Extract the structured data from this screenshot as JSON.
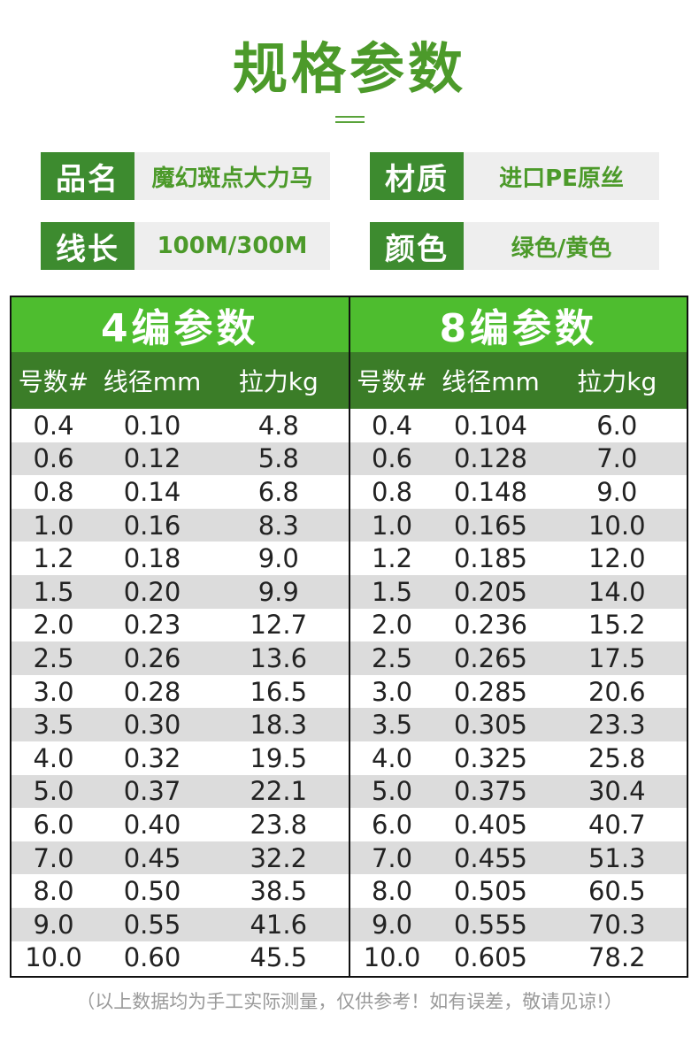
{
  "title": "规格参数",
  "specs": [
    {
      "key": "品名",
      "value": "魔幻斑点大力马"
    },
    {
      "key": "材质",
      "value": "进口PE原丝"
    },
    {
      "key": "线长",
      "value": "100M/300M"
    },
    {
      "key": "颜色",
      "value": "绿色/黄色"
    }
  ],
  "tables": [
    {
      "title": "4编参数",
      "headers": [
        "号数#",
        "线径mm",
        "拉力kg"
      ],
      "rows": [
        [
          "0.4",
          "0.10",
          "4.8"
        ],
        [
          "0.6",
          "0.12",
          "5.8"
        ],
        [
          "0.8",
          "0.14",
          "6.8"
        ],
        [
          "1.0",
          "0.16",
          "8.3"
        ],
        [
          "1.2",
          "0.18",
          "9.0"
        ],
        [
          "1.5",
          "0.20",
          "9.9"
        ],
        [
          "2.0",
          "0.23",
          "12.7"
        ],
        [
          "2.5",
          "0.26",
          "13.6"
        ],
        [
          "3.0",
          "0.28",
          "16.5"
        ],
        [
          "3.5",
          "0.30",
          "18.3"
        ],
        [
          "4.0",
          "0.32",
          "19.5"
        ],
        [
          "5.0",
          "0.37",
          "22.1"
        ],
        [
          "6.0",
          "0.40",
          "23.8"
        ],
        [
          "7.0",
          "0.45",
          "32.2"
        ],
        [
          "8.0",
          "0.50",
          "38.5"
        ],
        [
          "9.0",
          "0.55",
          "41.6"
        ],
        [
          "10.0",
          "0.60",
          "45.5"
        ]
      ]
    },
    {
      "title": "8编参数",
      "headers": [
        "号数#",
        "线径mm",
        "拉力kg"
      ],
      "rows": [
        [
          "0.4",
          "0.104",
          "6.0"
        ],
        [
          "0.6",
          "0.128",
          "7.0"
        ],
        [
          "0.8",
          "0.148",
          "9.0"
        ],
        [
          "1.0",
          "0.165",
          "10.0"
        ],
        [
          "1.2",
          "0.185",
          "12.0"
        ],
        [
          "1.5",
          "0.205",
          "14.0"
        ],
        [
          "2.0",
          "0.236",
          "15.2"
        ],
        [
          "2.5",
          "0.265",
          "17.5"
        ],
        [
          "3.0",
          "0.285",
          "20.6"
        ],
        [
          "3.5",
          "0.305",
          "23.3"
        ],
        [
          "4.0",
          "0.325",
          "25.8"
        ],
        [
          "5.0",
          "0.375",
          "30.4"
        ],
        [
          "6.0",
          "0.405",
          "40.7"
        ],
        [
          "7.0",
          "0.455",
          "51.3"
        ],
        [
          "8.0",
          "0.505",
          "60.5"
        ],
        [
          "9.0",
          "0.555",
          "70.3"
        ],
        [
          "10.0",
          "0.605",
          "78.2"
        ]
      ]
    }
  ],
  "note": "（以上数据均为手工实际测量，仅供参考！如有误差，敬请见谅!）"
}
